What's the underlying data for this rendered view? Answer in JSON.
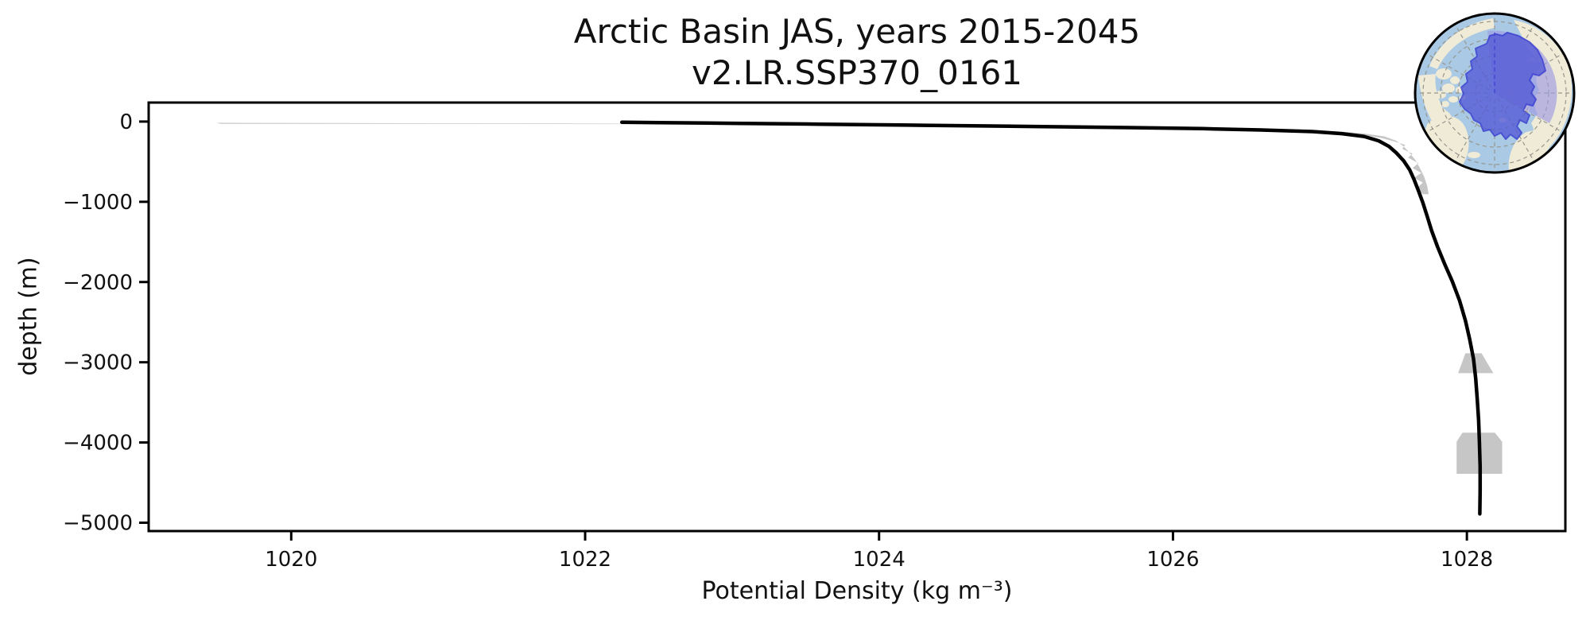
{
  "title": {
    "line1": "Arctic Basin JAS, years 2015-2045",
    "line2": "v2.LR.SSP370_0161"
  },
  "axes": {
    "xlabel": "Potential Density (kg m⁻³)",
    "ylabel": "depth (m)"
  },
  "chart_data": {
    "type": "line",
    "title": "Arctic Basin JAS, years 2015-2045 — v2.LR.SSP370_0161",
    "xlabel": "Potential Density (kg m⁻³)",
    "ylabel": "depth (m)",
    "xlim": [
      1019.03,
      1028.67
    ],
    "ylim": [
      -5104,
      237
    ],
    "grid": false,
    "legend": null,
    "background": "#ffffff",
    "x_ticks": [
      {
        "value": 1020,
        "label": "1020"
      },
      {
        "value": 1022,
        "label": "1022"
      },
      {
        "value": 1024,
        "label": "1024"
      },
      {
        "value": 1026,
        "label": "1026"
      },
      {
        "value": 1028,
        "label": "1028"
      }
    ],
    "y_ticks": [
      {
        "value": 0,
        "label": "0"
      },
      {
        "value": -1000,
        "label": "−1000"
      },
      {
        "value": -2000,
        "label": "−2000"
      },
      {
        "value": -3000,
        "label": "−3000"
      },
      {
        "value": -4000,
        "label": "−4000"
      },
      {
        "value": -5000,
        "label": "−5000"
      }
    ],
    "series": [
      {
        "name": "spread-envelope",
        "type": "band",
        "color": "#c6c6c6",
        "polygon": [
          [
            1019.49,
            -16
          ],
          [
            1020.6,
            -20
          ],
          [
            1021.7,
            -24
          ],
          [
            1022.6,
            -28
          ],
          [
            1023.4,
            -34
          ],
          [
            1024.2,
            -44
          ],
          [
            1025.0,
            -56
          ],
          [
            1025.8,
            -70
          ],
          [
            1026.35,
            -84
          ],
          [
            1026.8,
            -100
          ],
          [
            1027.1,
            -120
          ],
          [
            1027.3,
            -148
          ],
          [
            1027.44,
            -185
          ],
          [
            1027.52,
            -240
          ],
          [
            1027.57,
            -310
          ],
          [
            1027.61,
            -390
          ],
          [
            1027.65,
            -480
          ],
          [
            1027.68,
            -580
          ],
          [
            1027.71,
            -690
          ],
          [
            1027.73,
            -800
          ],
          [
            1027.74,
            -905
          ],
          [
            1027.7,
            -905
          ],
          [
            1027.66,
            -830
          ],
          [
            1027.7,
            -760
          ],
          [
            1027.64,
            -700
          ],
          [
            1027.69,
            -640
          ],
          [
            1027.63,
            -580
          ],
          [
            1027.67,
            -520
          ],
          [
            1027.6,
            -450
          ],
          [
            1027.63,
            -400
          ],
          [
            1027.56,
            -340
          ],
          [
            1027.58,
            -290
          ],
          [
            1027.5,
            -245
          ],
          [
            1027.42,
            -205
          ],
          [
            1027.32,
            -175
          ],
          [
            1027.18,
            -148
          ],
          [
            1026.98,
            -125
          ],
          [
            1026.6,
            -108
          ],
          [
            1026.15,
            -92
          ],
          [
            1025.5,
            -76
          ],
          [
            1024.7,
            -62
          ],
          [
            1023.9,
            -48
          ],
          [
            1023.1,
            -38
          ],
          [
            1022.3,
            -32
          ],
          [
            1021.3,
            -30
          ],
          [
            1020.2,
            -28
          ],
          [
            1019.52,
            -29
          ]
        ]
      },
      {
        "name": "spread-patch-3000m",
        "type": "polygon",
        "color": "#c6c6c6",
        "polygon": [
          [
            1027.99,
            -2888
          ],
          [
            1028.1,
            -2888
          ],
          [
            1028.18,
            -3136
          ],
          [
            1027.94,
            -3136
          ]
        ]
      },
      {
        "name": "spread-patch-4100m",
        "type": "polygon",
        "color": "#c6c6c6",
        "polygon": [
          [
            1027.97,
            -3877
          ],
          [
            1028.19,
            -3877
          ],
          [
            1028.24,
            -3990
          ],
          [
            1028.24,
            -4391
          ],
          [
            1027.93,
            -4391
          ],
          [
            1027.93,
            -3990
          ]
        ]
      },
      {
        "name": "mean-profile",
        "type": "line",
        "color": "#000000",
        "width": 4.5,
        "points": [
          [
            1022.25,
            -8
          ],
          [
            1022.5,
            -13
          ],
          [
            1023.0,
            -22
          ],
          [
            1023.6,
            -33
          ],
          [
            1024.3,
            -46
          ],
          [
            1025.0,
            -60
          ],
          [
            1025.7,
            -75
          ],
          [
            1026.2,
            -88
          ],
          [
            1026.6,
            -105
          ],
          [
            1026.95,
            -125
          ],
          [
            1027.15,
            -150
          ],
          [
            1027.3,
            -185
          ],
          [
            1027.4,
            -240
          ],
          [
            1027.47,
            -310
          ],
          [
            1027.52,
            -390
          ],
          [
            1027.57,
            -490
          ],
          [
            1027.61,
            -600
          ],
          [
            1027.64,
            -720
          ],
          [
            1027.67,
            -860
          ],
          [
            1027.7,
            -1010
          ],
          [
            1027.73,
            -1180
          ],
          [
            1027.76,
            -1360
          ],
          [
            1027.8,
            -1560
          ],
          [
            1027.85,
            -1780
          ],
          [
            1027.9,
            -1990
          ],
          [
            1027.95,
            -2230
          ],
          [
            1027.99,
            -2480
          ],
          [
            1028.02,
            -2720
          ],
          [
            1028.045,
            -2960
          ],
          [
            1028.06,
            -3200
          ],
          [
            1028.07,
            -3450
          ],
          [
            1028.08,
            -3720
          ],
          [
            1028.085,
            -4000
          ],
          [
            1028.09,
            -4300
          ],
          [
            1028.09,
            -4600
          ],
          [
            1028.088,
            -4890
          ]
        ]
      }
    ]
  },
  "map_inset": {
    "description": "polar-stereographic-locator-map-arctic-basin-region",
    "colors": {
      "ocean": "#a9c9e5",
      "land": "#efebd7",
      "basin_fill": "#565cd6",
      "basin_outline": "#3238cf",
      "sector_fill": "#9c99e2",
      "graticule": "#97978d",
      "meridian_dash": "#4347d2",
      "rim": "#000000"
    }
  }
}
